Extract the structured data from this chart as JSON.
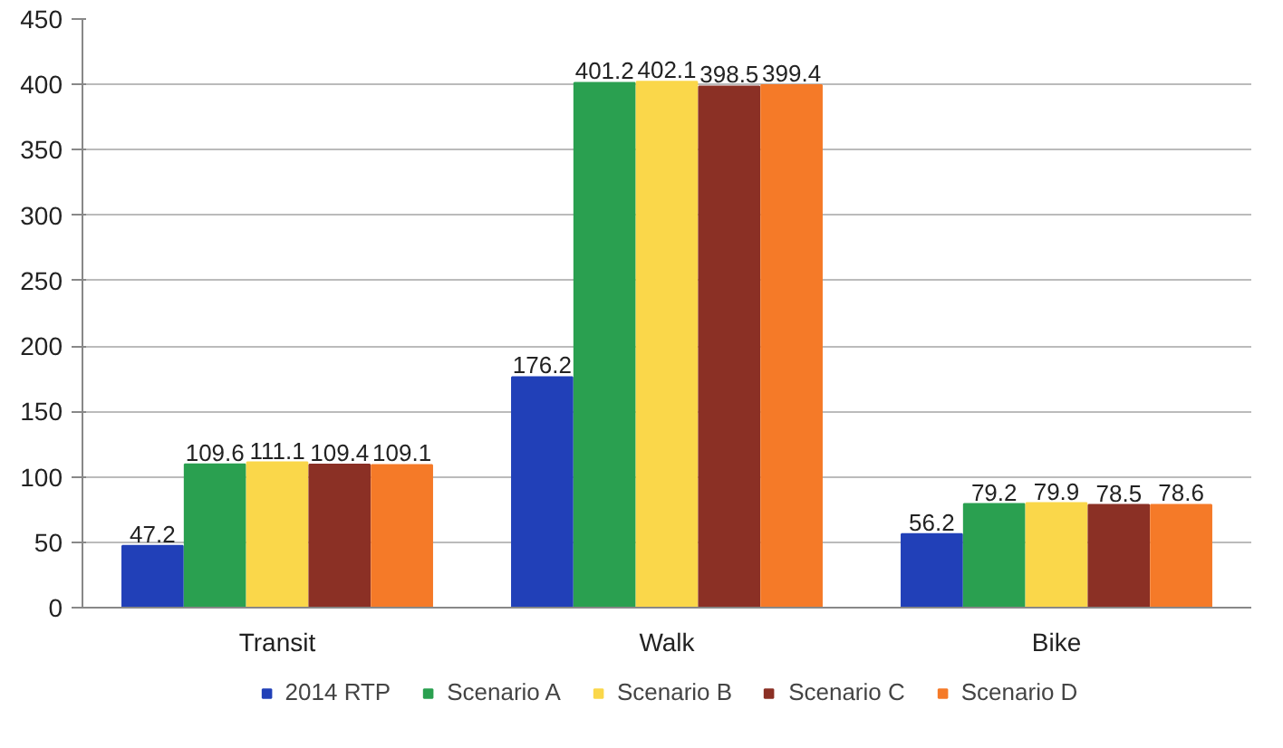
{
  "chart_data": {
    "type": "bar",
    "categories": [
      "Transit",
      "Walk",
      "Bike"
    ],
    "series": [
      {
        "name": "2014 RTP",
        "color": "#2140b8",
        "values": [
          47.2,
          176.2,
          56.2
        ]
      },
      {
        "name": "Scenario A",
        "color": "#2aa050",
        "values": [
          109.6,
          401.2,
          79.2
        ]
      },
      {
        "name": "Scenario B",
        "color": "#fad74a",
        "values": [
          111.1,
          402.1,
          79.9
        ]
      },
      {
        "name": "Scenario C",
        "color": "#8b3025",
        "values": [
          109.4,
          398.5,
          78.5
        ]
      },
      {
        "name": "Scenario D",
        "color": "#f57a28",
        "values": [
          109.1,
          399.4,
          78.6
        ]
      }
    ],
    "ylim": [
      0,
      450
    ],
    "yticks": [
      0,
      50,
      100,
      150,
      200,
      250,
      300,
      350,
      400,
      450
    ],
    "grid": "y",
    "legend": "bottom",
    "data_labels": true
  }
}
